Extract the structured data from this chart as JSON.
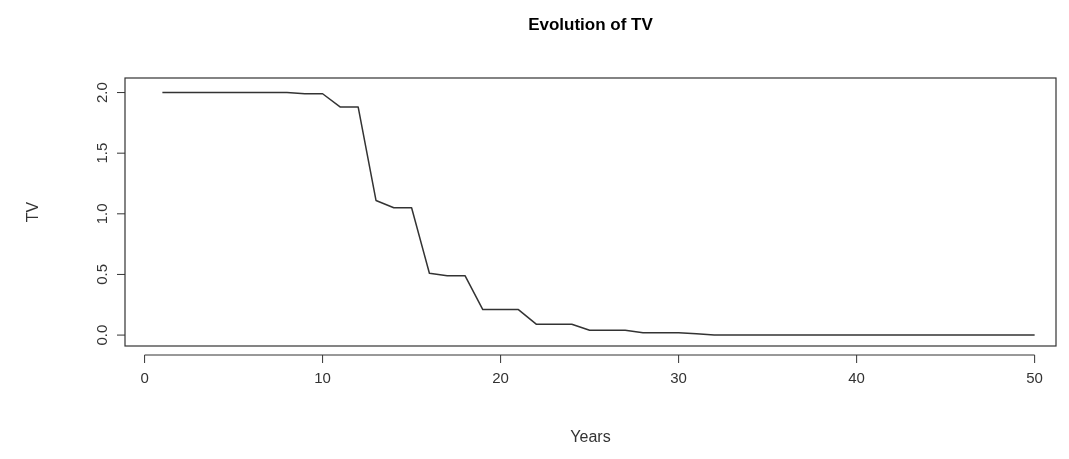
{
  "chart_data": {
    "type": "line",
    "title": "Evolution of TV",
    "xlabel": "Years",
    "ylabel": "TV",
    "x": [
      1,
      2,
      3,
      4,
      5,
      6,
      7,
      8,
      9,
      10,
      11,
      12,
      13,
      14,
      15,
      16,
      17,
      18,
      19,
      20,
      21,
      22,
      23,
      24,
      25,
      26,
      27,
      28,
      29,
      30,
      31,
      32,
      33,
      34,
      35,
      36,
      37,
      38,
      39,
      40,
      41,
      42,
      43,
      44,
      45,
      46,
      47,
      48,
      49,
      50
    ],
    "series": [
      {
        "color": "#333333",
        "values": [
          2,
          2,
          2,
          2,
          2,
          2,
          2,
          2,
          1.99,
          1.99,
          1.88,
          1.88,
          1.11,
          1.05,
          1.05,
          0.51,
          0.49,
          0.49,
          0.21,
          0.21,
          0.21,
          0.09,
          0.09,
          0.09,
          0.04,
          0.04,
          0.04,
          0.02,
          0.02,
          0.02,
          0.01,
          0,
          0,
          0,
          0,
          0,
          0,
          0,
          0,
          0,
          0,
          0,
          0,
          0,
          0,
          0,
          0,
          0,
          0,
          0
        ]
      }
    ],
    "xlim": [
      -1.1,
      51.2
    ],
    "ylim": [
      -0.09,
      2.12
    ],
    "xticks": [
      0,
      10,
      20,
      30,
      40,
      50
    ],
    "yticks": [
      {
        "value": 0,
        "label": "0.0"
      },
      {
        "value": 0.5,
        "label": "0.5"
      },
      {
        "value": 1,
        "label": "1.0"
      },
      {
        "value": 1.5,
        "label": "1.5"
      },
      {
        "value": 2,
        "label": "2.0"
      }
    ]
  }
}
